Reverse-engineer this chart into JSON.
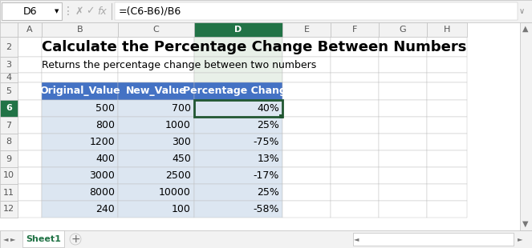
{
  "title": "Calculate the Percentage Change Between Numbers",
  "subtitle": "Returns the percentage change between two numbers",
  "formula_bar_cell": "D6",
  "formula_bar_formula": "=(C6-B6)/B6",
  "col_headers": [
    "Original_Value",
    "New_Value",
    "Percentage Change"
  ],
  "rows": [
    [
      500,
      700,
      "40%"
    ],
    [
      800,
      1000,
      "25%"
    ],
    [
      1200,
      300,
      "-75%"
    ],
    [
      400,
      450,
      "13%"
    ],
    [
      3000,
      2500,
      "-17%"
    ],
    [
      8000,
      10000,
      "25%"
    ],
    [
      240,
      100,
      "-58%"
    ]
  ],
  "col_letters": [
    "A",
    "B",
    "C",
    "D",
    "E",
    "F",
    "G",
    "H"
  ],
  "header_bg": "#4472C4",
  "header_text": "#FFFFFF",
  "row_bg_light": "#DCE6F1",
  "selected_cell_border": "#215732",
  "grid_color": "#BFBFBF",
  "title_fontsize": 13,
  "subtitle_fontsize": 9,
  "table_fontsize": 9
}
